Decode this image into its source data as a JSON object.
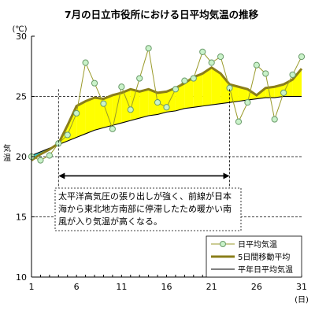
{
  "chart_data": {
    "type": "line",
    "title": "7月の日立市役所における日平均気温の推移",
    "y_unit": "(℃)",
    "x_unit": "(日)",
    "ylabel": "気温",
    "ylim": [
      10,
      30
    ],
    "xlim": [
      1,
      31
    ],
    "y_ticks": [
      10,
      15,
      20,
      25,
      30
    ],
    "x_ticks": [
      1,
      6,
      11,
      16,
      21,
      26,
      31
    ],
    "grid": "dashed horizontal at 15, 20, 25",
    "legend_position": "bottom-right",
    "x": [
      1,
      2,
      3,
      4,
      5,
      6,
      7,
      8,
      9,
      10,
      11,
      12,
      13,
      14,
      15,
      16,
      17,
      18,
      19,
      20,
      21,
      22,
      23,
      24,
      25,
      26,
      27,
      28,
      29,
      30,
      31
    ],
    "series": [
      {
        "name": "日平均気温",
        "values": [
          20.0,
          19.7,
          20.1,
          21.1,
          21.8,
          23.6,
          27.8,
          26.1,
          24.4,
          22.3,
          25.8,
          23.9,
          26.5,
          29.0,
          24.5,
          24.1,
          25.6,
          26.3,
          26.5,
          28.7,
          27.8,
          28.3,
          25.7,
          22.9,
          24.5,
          27.6,
          26.9,
          23.1,
          25.3,
          26.8,
          28.3
        ]
      },
      {
        "name": "5日間移動平均",
        "values": [
          19.7,
          20.2,
          20.6,
          21.1,
          22.6,
          24.2,
          24.6,
          24.9,
          24.8,
          25.1,
          25.3,
          25.6,
          25.4,
          25.6,
          25.3,
          25.4,
          25.7,
          26.1,
          26.6,
          26.9,
          27.4,
          26.9,
          26.0,
          25.8,
          25.6,
          25.1,
          25.7,
          25.8,
          26.0,
          26.4,
          27.3
        ]
      },
      {
        "name": "平年日平均気温",
        "values": [
          20.1,
          20.4,
          20.7,
          21.0,
          21.3,
          21.6,
          21.9,
          22.2,
          22.4,
          22.6,
          22.8,
          23.0,
          23.2,
          23.4,
          23.5,
          23.7,
          23.8,
          24.0,
          24.1,
          24.2,
          24.3,
          24.4,
          24.5,
          24.6,
          24.7,
          24.8,
          24.9,
          24.9,
          25.0,
          25.0,
          25.0
        ]
      }
    ],
    "annotation": {
      "text": "太平洋高気圧の張り出しが強く、前線が日本海から東北地方南部に停滞したため暖かい南風が入り気温が高くなる。",
      "arrow_from_day": 4,
      "arrow_to_day": 23
    },
    "colors": {
      "daily_line": "#9a9a2a",
      "daily_marker_fill": "#c9f2c9",
      "daily_marker_stroke": "#6a9a6a",
      "moving_avg": "#8a7e1a",
      "normal": "#000000",
      "warm_fill": "#ffff00",
      "cool_fill": "#33cccc"
    }
  }
}
